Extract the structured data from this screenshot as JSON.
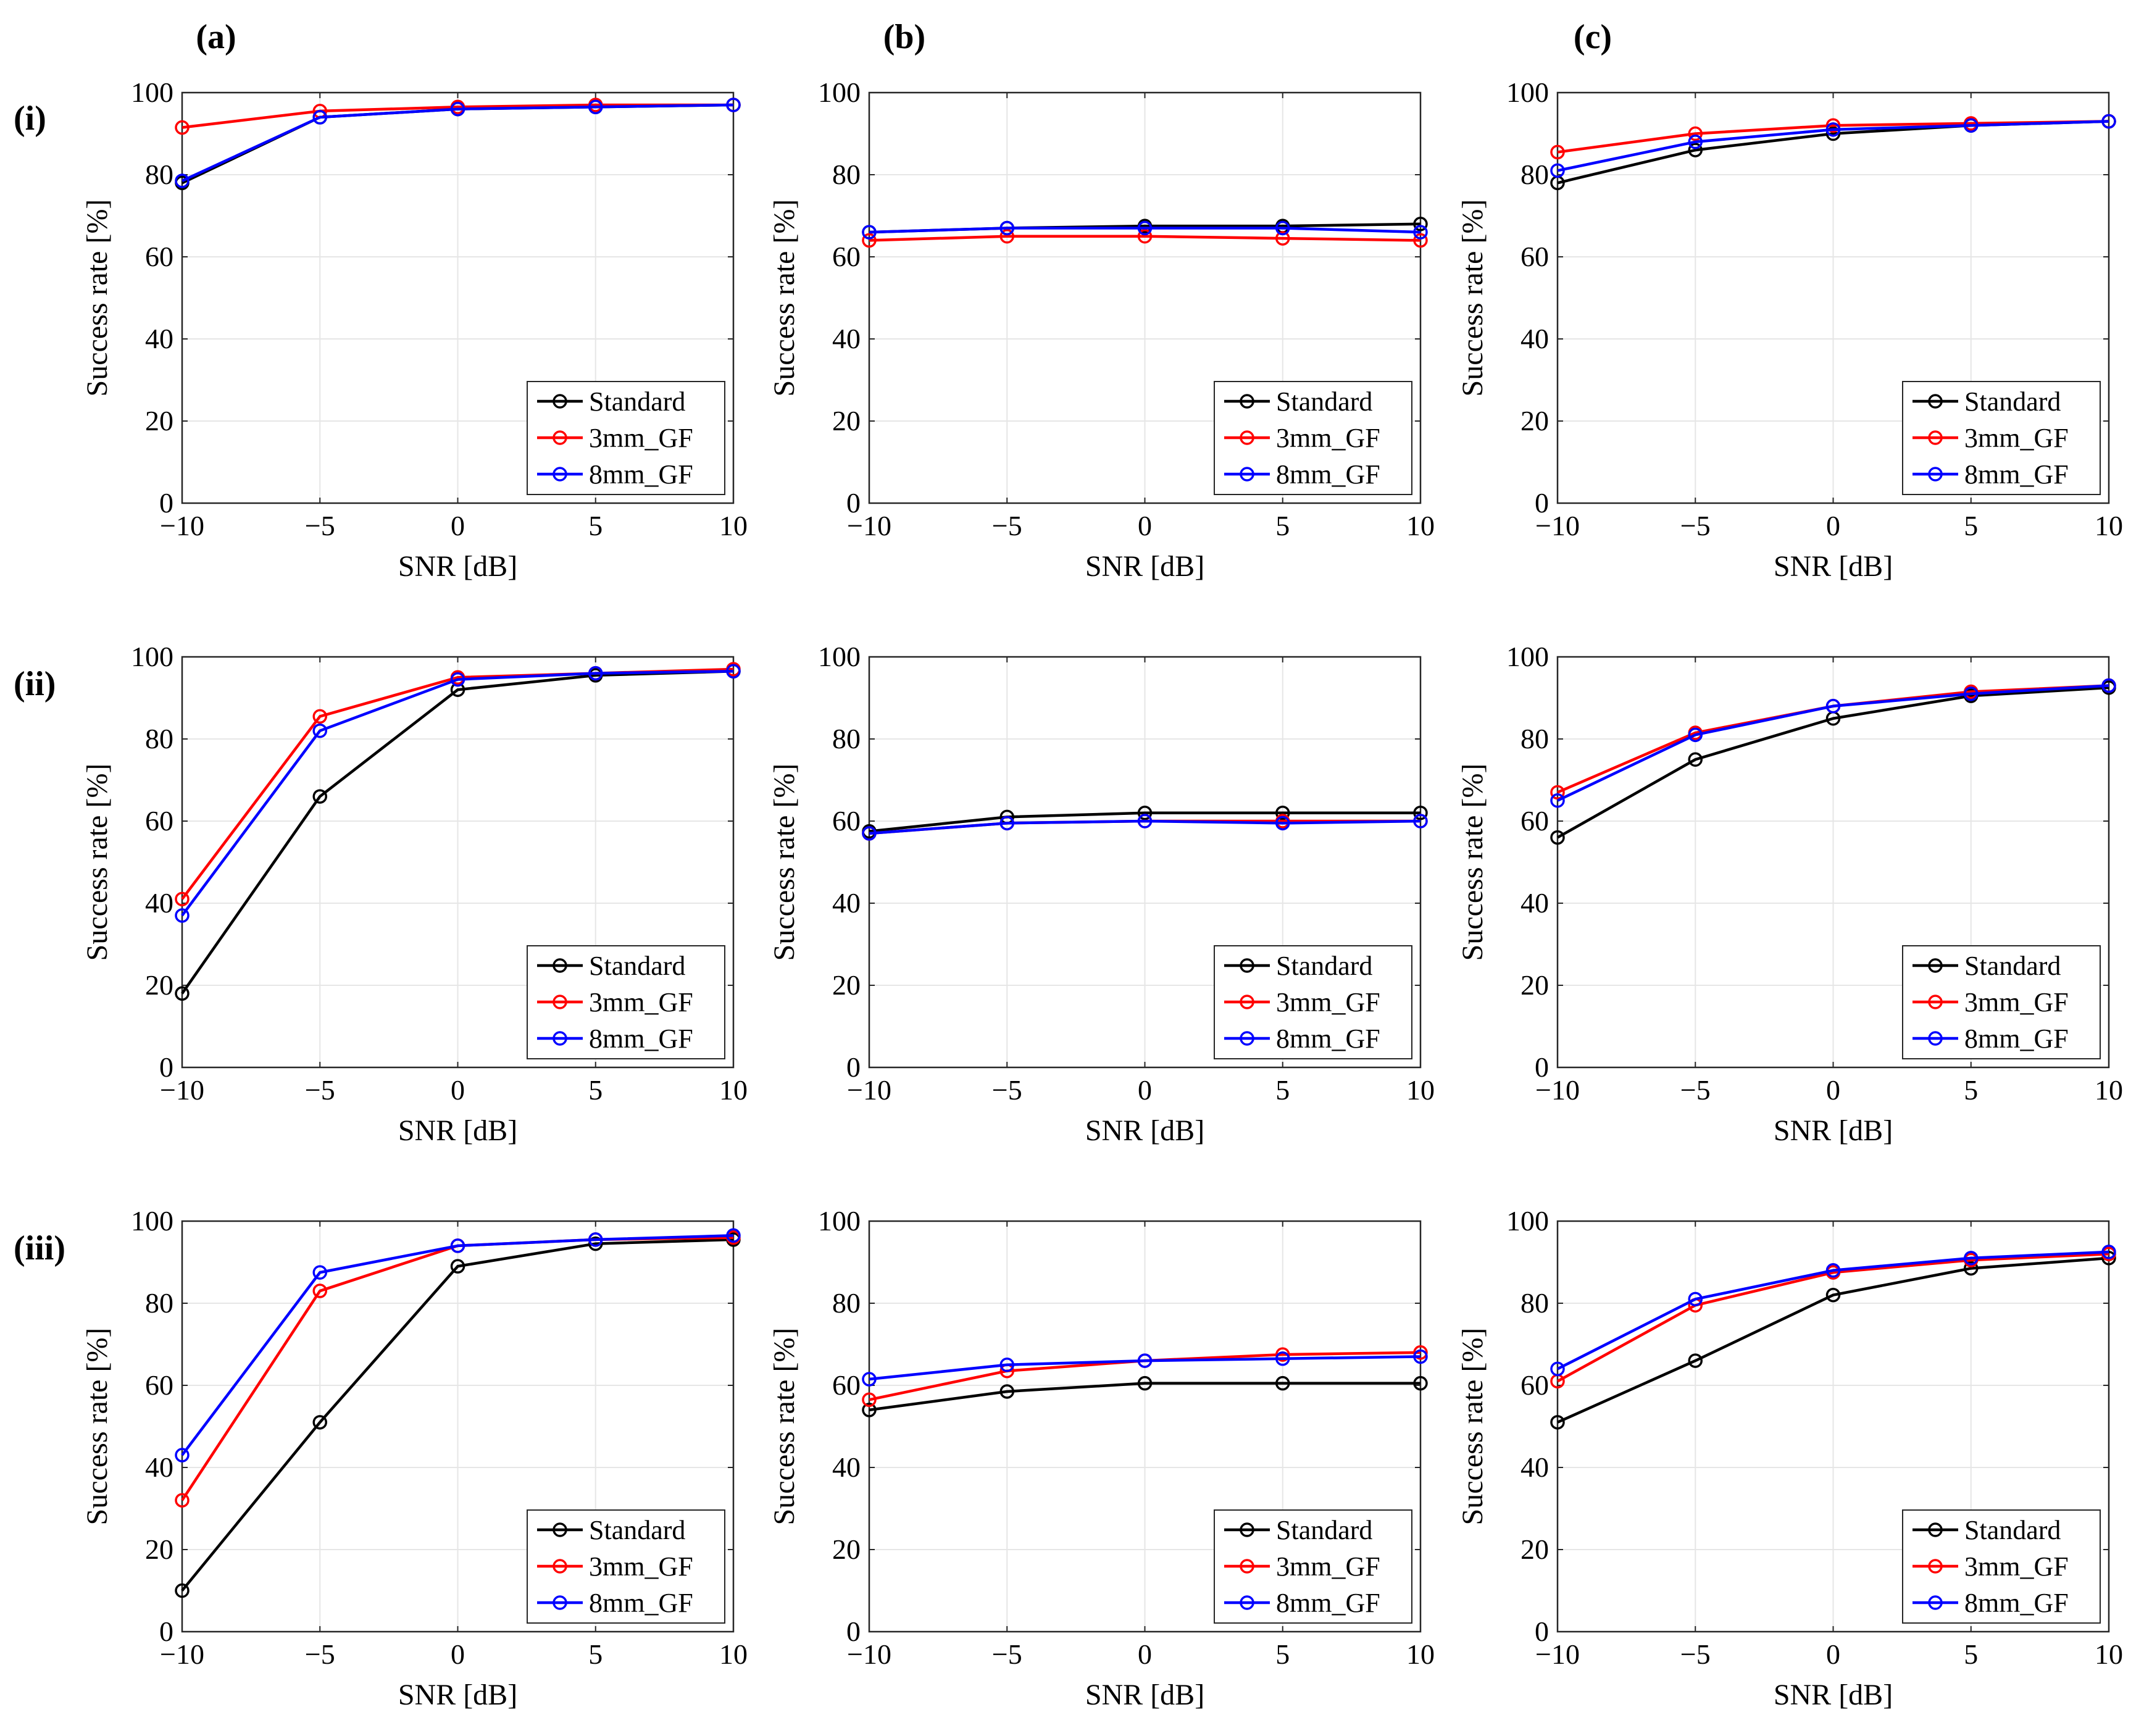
{
  "figure": {
    "column_labels": [
      "(a)",
      "(b)",
      "(c)"
    ],
    "row_labels": [
      "(i)",
      "(ii)",
      "(iii)"
    ]
  },
  "colors": {
    "Standard": "#000000",
    "3mm_GF": "#ff0000",
    "8mm_GF": "#0000ff",
    "grid": "#e6e6e6"
  },
  "chart_data": [
    {
      "type": "line",
      "panel": "i-a",
      "xlabel": "SNR [dB]",
      "ylabel": "Success rate [%]",
      "x": [
        -10,
        -5,
        0,
        5,
        10
      ],
      "xlim": [
        -10,
        10
      ],
      "ylim": [
        0,
        100
      ],
      "xticks": [
        "−10",
        "−5",
        "0",
        "5",
        "10"
      ],
      "yticks": [
        "0",
        "20",
        "40",
        "60",
        "80",
        "100"
      ],
      "grid": true,
      "legend": "lower-right",
      "series": [
        {
          "name": "Standard",
          "values": [
            78,
            94,
            96,
            96.5,
            97
          ]
        },
        {
          "name": "3mm_GF",
          "values": [
            91.5,
            95.5,
            96.5,
            97,
            97
          ]
        },
        {
          "name": "8mm_GF",
          "values": [
            78.5,
            94,
            96,
            96.5,
            97
          ]
        }
      ]
    },
    {
      "type": "line",
      "panel": "i-b",
      "xlabel": "SNR [dB]",
      "ylabel": "Success rate [%]",
      "x": [
        -10,
        -5,
        0,
        5,
        10
      ],
      "xlim": [
        -10,
        10
      ],
      "ylim": [
        0,
        100
      ],
      "xticks": [
        "−10",
        "−5",
        "0",
        "5",
        "10"
      ],
      "yticks": [
        "0",
        "20",
        "40",
        "60",
        "80",
        "100"
      ],
      "grid": true,
      "legend": "lower-right",
      "series": [
        {
          "name": "Standard",
          "values": [
            66,
            67,
            67.5,
            67.5,
            68
          ]
        },
        {
          "name": "3mm_GF",
          "values": [
            64,
            65,
            65,
            64.5,
            64
          ]
        },
        {
          "name": "8mm_GF",
          "values": [
            66,
            67,
            67,
            67,
            66
          ]
        }
      ]
    },
    {
      "type": "line",
      "panel": "i-c",
      "xlabel": "SNR [dB]",
      "ylabel": "Success rate [%]",
      "x": [
        -10,
        -5,
        0,
        5,
        10
      ],
      "xlim": [
        -10,
        10
      ],
      "ylim": [
        0,
        100
      ],
      "xticks": [
        "−10",
        "−5",
        "0",
        "5",
        "10"
      ],
      "yticks": [
        "0",
        "20",
        "40",
        "60",
        "80",
        "100"
      ],
      "grid": true,
      "legend": "lower-right",
      "series": [
        {
          "name": "Standard",
          "values": [
            78,
            86,
            90,
            92,
            93
          ]
        },
        {
          "name": "3mm_GF",
          "values": [
            85.5,
            90,
            92,
            92.5,
            93
          ]
        },
        {
          "name": "8mm_GF",
          "values": [
            81,
            88,
            91,
            92,
            93
          ]
        }
      ]
    },
    {
      "type": "line",
      "panel": "ii-a",
      "xlabel": "SNR [dB]",
      "ylabel": "Success rate [%]",
      "x": [
        -10,
        -5,
        0,
        5,
        10
      ],
      "xlim": [
        -10,
        10
      ],
      "ylim": [
        0,
        100
      ],
      "xticks": [
        "−10",
        "−5",
        "0",
        "5",
        "10"
      ],
      "yticks": [
        "0",
        "20",
        "40",
        "60",
        "80",
        "100"
      ],
      "grid": true,
      "legend": "lower-right",
      "series": [
        {
          "name": "Standard",
          "values": [
            18,
            66,
            92,
            95.5,
            96.5
          ]
        },
        {
          "name": "3mm_GF",
          "values": [
            41,
            85.5,
            95,
            96,
            97
          ]
        },
        {
          "name": "8mm_GF",
          "values": [
            37,
            82,
            94.5,
            96,
            96.5
          ]
        }
      ]
    },
    {
      "type": "line",
      "panel": "ii-b",
      "xlabel": "SNR [dB]",
      "ylabel": "Success rate [%]",
      "x": [
        -10,
        -5,
        0,
        5,
        10
      ],
      "xlim": [
        -10,
        10
      ],
      "ylim": [
        0,
        100
      ],
      "xticks": [
        "−10",
        "−5",
        "0",
        "5",
        "10"
      ],
      "yticks": [
        "0",
        "20",
        "40",
        "60",
        "80",
        "100"
      ],
      "grid": true,
      "legend": "lower-right",
      "series": [
        {
          "name": "Standard",
          "values": [
            57.5,
            61,
            62,
            62,
            62
          ]
        },
        {
          "name": "3mm_GF",
          "values": [
            57,
            59.5,
            60,
            60,
            60
          ]
        },
        {
          "name": "8mm_GF",
          "values": [
            57,
            59.5,
            60,
            59.5,
            60
          ]
        }
      ]
    },
    {
      "type": "line",
      "panel": "ii-c",
      "xlabel": "SNR [dB]",
      "ylabel": "Success rate [%]",
      "x": [
        -10,
        -5,
        0,
        5,
        10
      ],
      "xlim": [
        -10,
        10
      ],
      "ylim": [
        0,
        100
      ],
      "xticks": [
        "−10",
        "−5",
        "0",
        "5",
        "10"
      ],
      "yticks": [
        "0",
        "20",
        "40",
        "60",
        "80",
        "100"
      ],
      "grid": true,
      "legend": "lower-right",
      "series": [
        {
          "name": "Standard",
          "values": [
            56,
            75,
            85,
            90.5,
            92.5
          ]
        },
        {
          "name": "3mm_GF",
          "values": [
            67,
            81.5,
            88,
            91.5,
            93
          ]
        },
        {
          "name": "8mm_GF",
          "values": [
            65,
            81,
            88,
            91,
            93
          ]
        }
      ]
    },
    {
      "type": "line",
      "panel": "iii-a",
      "xlabel": "SNR [dB]",
      "ylabel": "Success rate [%]",
      "x": [
        -10,
        -5,
        0,
        5,
        10
      ],
      "xlim": [
        -10,
        10
      ],
      "ylim": [
        0,
        100
      ],
      "xticks": [
        "−10",
        "−5",
        "0",
        "5",
        "10"
      ],
      "yticks": [
        "0",
        "20",
        "40",
        "60",
        "80",
        "100"
      ],
      "grid": true,
      "legend": "lower-right",
      "series": [
        {
          "name": "Standard",
          "values": [
            10,
            51,
            89,
            94.5,
            95.5
          ]
        },
        {
          "name": "3mm_GF",
          "values": [
            32,
            83,
            94,
            95.5,
            96
          ]
        },
        {
          "name": "8mm_GF",
          "values": [
            43,
            87.5,
            94,
            95.5,
            96.5
          ]
        }
      ]
    },
    {
      "type": "line",
      "panel": "iii-b",
      "xlabel": "SNR [dB]",
      "ylabel": "Success rate [%]",
      "x": [
        -10,
        -5,
        0,
        5,
        10
      ],
      "xlim": [
        -10,
        10
      ],
      "ylim": [
        0,
        100
      ],
      "xticks": [
        "−10",
        "−5",
        "0",
        "5",
        "10"
      ],
      "yticks": [
        "0",
        "20",
        "40",
        "60",
        "80",
        "100"
      ],
      "grid": true,
      "legend": "lower-right",
      "series": [
        {
          "name": "Standard",
          "values": [
            54,
            58.5,
            60.5,
            60.5,
            60.5
          ]
        },
        {
          "name": "3mm_GF",
          "values": [
            56.5,
            63.5,
            66,
            67.5,
            68
          ]
        },
        {
          "name": "8mm_GF",
          "values": [
            61.5,
            65,
            66,
            66.5,
            67
          ]
        }
      ]
    },
    {
      "type": "line",
      "panel": "iii-c",
      "xlabel": "SNR [dB]",
      "ylabel": "Success rate [%]",
      "x": [
        -10,
        -5,
        0,
        5,
        10
      ],
      "xlim": [
        -10,
        10
      ],
      "ylim": [
        0,
        100
      ],
      "xticks": [
        "−10",
        "−5",
        "0",
        "5",
        "10"
      ],
      "yticks": [
        "0",
        "20",
        "40",
        "60",
        "80",
        "100"
      ],
      "grid": true,
      "legend": "lower-right",
      "series": [
        {
          "name": "Standard",
          "values": [
            51,
            66,
            82,
            88.5,
            91
          ]
        },
        {
          "name": "3mm_GF",
          "values": [
            61,
            79.5,
            87.5,
            90.5,
            92
          ]
        },
        {
          "name": "8mm_GF",
          "values": [
            64,
            81,
            88,
            91,
            92.5
          ]
        }
      ]
    }
  ]
}
